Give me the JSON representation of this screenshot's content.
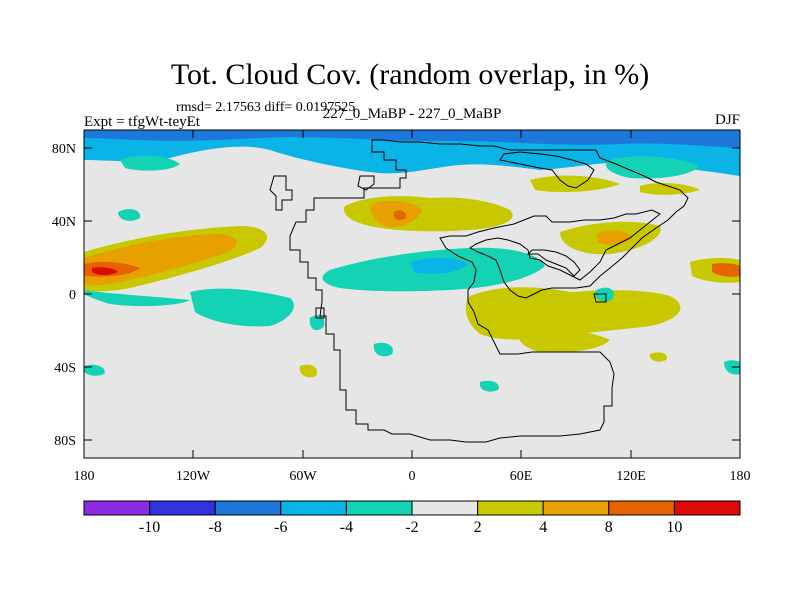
{
  "title": "Tot. Cloud Cov. (random overlap, in %)",
  "stats": "rmsd= 2.17563 diff= 0.0197525",
  "left_label": "Expt = tfgWt-teyEt",
  "center_label": "227_0_MaBP - 227_0_MaBP",
  "right_label": "DJF",
  "lat_ticks": [
    "80N",
    "40N",
    "0",
    "40S",
    "80S"
  ],
  "lon_ticks": [
    "180",
    "120W",
    "60W",
    "0",
    "60E",
    "120E",
    "180"
  ],
  "colorbar": {
    "labels": [
      "-10",
      "-8",
      "-6",
      "-4",
      "-2",
      "2",
      "4",
      "8",
      "10"
    ],
    "colors": [
      "#8a2be2",
      "#3232dc",
      "#1e78dc",
      "#0ab4e6",
      "#14d2b4",
      "#e6e6e6",
      "#c8c800",
      "#e6a000",
      "#e66400",
      "#dc0a0a"
    ]
  },
  "palette": {
    "neutral": "#e6e6e6",
    "c_minus8": "#1e78dc",
    "c_minus6": "#0ab4e6",
    "c_minus4": "#14d2b4",
    "c_plus2": "#c8c800",
    "c_plus4": "#e6a000",
    "c_plus8": "#e66400",
    "c_plus10": "#dc0a0a"
  }
}
